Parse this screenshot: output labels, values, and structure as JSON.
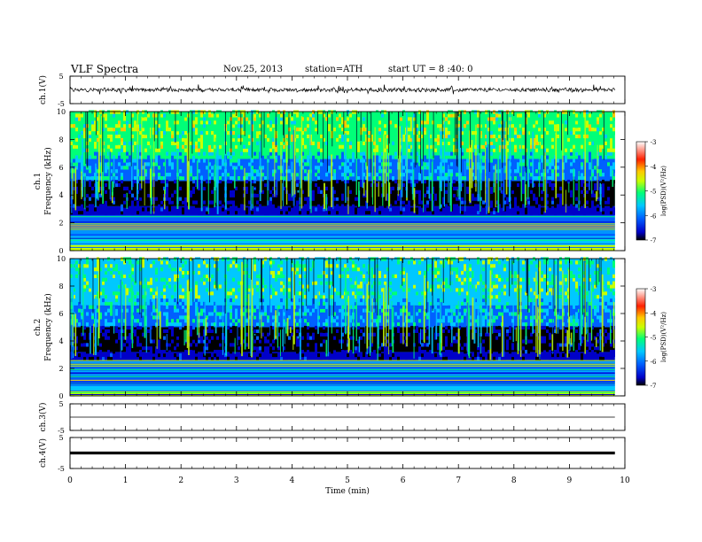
{
  "header": {
    "title": "VLF Spectra",
    "date": "Nov.25, 2013",
    "station": "station=ATH",
    "start_ut": "start UT =  8 :40: 0"
  },
  "chart_data": [
    {
      "type": "line",
      "name": "ch1-waveform",
      "ylabel": "ch.1(V)",
      "ylim": [
        -5,
        5
      ],
      "yticks": [
        "5",
        "-5"
      ],
      "xlim": [
        0,
        10
      ],
      "data_extent_min": 9.82,
      "description_level": "noisy waveform around 0 V, amplitude about ±1.5 V"
    },
    {
      "type": "heatmap",
      "name": "ch1-spectrogram",
      "ylabel_channel": "ch.1",
      "ylabel": "Frequency (kHz)",
      "ylim": [
        0,
        10
      ],
      "yticks": [
        "0",
        "2",
        "4",
        "6",
        "8",
        "10"
      ],
      "xlim": [
        0,
        10
      ],
      "data_extent_min": 9.82,
      "colorbar": {
        "label": "log(PSD)(V²/Hz)",
        "range": [
          -7,
          -3
        ],
        "ticks": [
          "-3",
          "-4",
          "-5",
          "-6",
          "-7"
        ],
        "colors": [
          "#000000",
          "#0000c8",
          "#0060ff",
          "#00c8ff",
          "#00ff78",
          "#c8ff00",
          "#ffc800",
          "#ff2000",
          "#ffffff"
        ]
      }
    },
    {
      "type": "heatmap",
      "name": "ch2-spectrogram",
      "ylabel_channel": "ch.2",
      "ylabel": "Frequency (kHz)",
      "ylim": [
        0,
        10
      ],
      "yticks": [
        "0",
        "2",
        "4",
        "6",
        "8",
        "10"
      ],
      "xlim": [
        0,
        10
      ],
      "data_extent_min": 9.82,
      "colorbar": {
        "label": "log(PSD)(V²/Hz)",
        "range": [
          -7,
          -3
        ],
        "ticks": [
          "-3",
          "-4",
          "-5",
          "-6",
          "-7"
        ]
      }
    },
    {
      "type": "line",
      "name": "ch3-waveform",
      "ylabel": "ch.3(V)",
      "ylim": [
        -5,
        5
      ],
      "yticks": [
        "5",
        "-5"
      ],
      "xlim": [
        0,
        10
      ],
      "data_extent_min": 9.82,
      "level": 0
    },
    {
      "type": "line",
      "name": "ch4-waveform",
      "ylabel": "ch.4(V)",
      "ylim": [
        -5,
        5
      ],
      "yticks": [
        "5",
        "-5"
      ],
      "xlim": [
        0,
        10
      ],
      "data_extent_min": 9.82,
      "level": 0,
      "xlabel": "Time (min)",
      "xticks": [
        "0",
        "1",
        "2",
        "3",
        "4",
        "5",
        "6",
        "7",
        "8",
        "9",
        "10"
      ]
    }
  ]
}
